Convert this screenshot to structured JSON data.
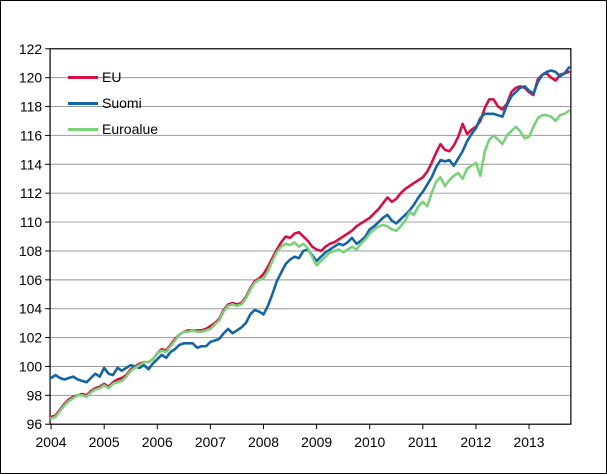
{
  "chart": {
    "legend": [
      {
        "label": "EU"
      },
      {
        "label": "Suomi"
      },
      {
        "label": "Euroalue"
      }
    ],
    "colors": {
      "eu": "#d50f43",
      "suomi": "#1565a5",
      "euroalue": "#79d179",
      "grid": "#999999",
      "axis": "#000000",
      "background": "#ffffff"
    }
  },
  "chart_data": {
    "type": "line",
    "title": "",
    "xlabel": "",
    "ylabel": "",
    "x_start": "2004-01",
    "x_frequency": "monthly",
    "x_tick_years": [
      "2004",
      "2005",
      "2006",
      "2007",
      "2008",
      "2009",
      "2010",
      "2011",
      "2012",
      "2013"
    ],
    "y_ticks": [
      96,
      98,
      100,
      102,
      104,
      106,
      108,
      110,
      112,
      114,
      116,
      118,
      120,
      122
    ],
    "ylim": [
      96,
      122
    ],
    "grid": true,
    "legend_position": "upper-left-inside",
    "series": [
      {
        "name": "EU",
        "color": "#d50f43",
        "values": [
          96.5,
          96.6,
          97.0,
          97.4,
          97.7,
          97.9,
          98.0,
          98.1,
          98.0,
          98.3,
          98.5,
          98.6,
          98.8,
          98.6,
          98.9,
          99.1,
          99.2,
          99.4,
          99.8,
          100.0,
          100.2,
          100.3,
          100.3,
          100.5,
          100.9,
          101.2,
          101.1,
          101.5,
          101.9,
          102.2,
          102.4,
          102.5,
          102.5,
          102.5,
          102.5,
          102.6,
          102.8,
          103.0,
          103.3,
          103.9,
          104.3,
          104.4,
          104.3,
          104.4,
          104.8,
          105.4,
          105.9,
          106.1,
          106.4,
          106.9,
          107.5,
          108.1,
          108.6,
          109.0,
          108.9,
          109.2,
          109.3,
          109.0,
          108.7,
          108.3,
          108.1,
          108.0,
          108.3,
          108.5,
          108.6,
          108.8,
          109.0,
          109.2,
          109.4,
          109.7,
          109.9,
          110.1,
          110.3,
          110.6,
          110.9,
          111.3,
          111.7,
          111.4,
          111.6,
          112.0,
          112.3,
          112.5,
          112.7,
          112.9,
          113.1,
          113.5,
          114.1,
          114.8,
          115.4,
          115.0,
          114.9,
          115.3,
          115.9,
          116.8,
          116.1,
          116.4,
          116.6,
          117.0,
          117.9,
          118.5,
          118.5,
          118.0,
          117.8,
          118.2,
          119.0,
          119.3,
          119.4,
          119.3,
          119.0,
          118.8,
          119.9,
          120.2,
          120.3,
          120.0,
          119.8,
          120.2,
          120.3,
          120.4
        ]
      },
      {
        "name": "Suomi",
        "color": "#1565a5",
        "values": [
          99.2,
          99.4,
          99.2,
          99.1,
          99.2,
          99.3,
          99.1,
          99.0,
          98.9,
          99.2,
          99.5,
          99.3,
          99.9,
          99.5,
          99.4,
          99.9,
          99.7,
          99.9,
          100.1,
          100.0,
          99.9,
          100.1,
          99.8,
          100.2,
          100.5,
          100.8,
          100.6,
          101.0,
          101.2,
          101.5,
          101.6,
          101.6,
          101.6,
          101.3,
          101.4,
          101.4,
          101.7,
          101.8,
          101.9,
          102.3,
          102.6,
          102.3,
          102.5,
          102.7,
          103.0,
          103.6,
          103.9,
          103.8,
          103.6,
          104.2,
          105.0,
          105.9,
          106.5,
          107.1,
          107.4,
          107.6,
          107.5,
          108.0,
          108.1,
          107.7,
          107.3,
          107.6,
          107.9,
          108.1,
          108.3,
          108.5,
          108.4,
          108.6,
          108.9,
          108.5,
          108.7,
          109.0,
          109.5,
          109.7,
          110.0,
          110.3,
          110.5,
          110.1,
          109.9,
          110.2,
          110.5,
          110.8,
          111.2,
          111.7,
          112.1,
          112.6,
          113.1,
          113.8,
          114.3,
          114.2,
          114.3,
          113.9,
          114.4,
          114.9,
          115.6,
          116.1,
          116.5,
          117.2,
          117.5,
          117.5,
          117.5,
          117.4,
          117.3,
          118.1,
          118.7,
          119.0,
          119.3,
          119.4,
          119.1,
          118.9,
          119.7,
          120.2,
          120.4,
          120.5,
          120.4,
          120.1,
          120.3,
          120.7
        ]
      },
      {
        "name": "Euroalue",
        "color": "#79d179",
        "values": [
          96.4,
          96.5,
          96.9,
          97.3,
          97.6,
          97.8,
          98.0,
          98.0,
          97.9,
          98.2,
          98.4,
          98.5,
          98.7,
          98.5,
          98.8,
          98.9,
          99.0,
          99.3,
          99.7,
          99.9,
          100.1,
          100.3,
          100.3,
          100.5,
          100.9,
          101.1,
          101.0,
          101.4,
          101.8,
          102.2,
          102.4,
          102.4,
          102.5,
          102.4,
          102.4,
          102.5,
          102.6,
          102.9,
          103.2,
          103.8,
          104.2,
          104.3,
          104.2,
          104.3,
          104.7,
          105.3,
          105.8,
          106.0,
          106.1,
          106.6,
          107.3,
          107.9,
          108.3,
          108.5,
          108.4,
          108.6,
          108.3,
          108.5,
          108.2,
          107.6,
          107.0,
          107.3,
          107.6,
          107.9,
          108.0,
          108.1,
          107.9,
          108.1,
          108.3,
          108.1,
          108.5,
          108.8,
          109.2,
          109.5,
          109.7,
          109.8,
          109.7,
          109.5,
          109.4,
          109.7,
          110.1,
          110.7,
          110.5,
          111.1,
          111.4,
          111.1,
          112.0,
          112.8,
          113.1,
          112.5,
          112.9,
          113.2,
          113.4,
          113.0,
          113.7,
          113.9,
          114.1,
          113.2,
          114.9,
          115.7,
          116.0,
          115.7,
          115.4,
          116.0,
          116.3,
          116.6,
          116.3,
          115.8,
          115.9,
          116.6,
          117.2,
          117.4,
          117.4,
          117.3,
          117.0,
          117.4,
          117.5,
          117.7
        ]
      }
    ]
  }
}
